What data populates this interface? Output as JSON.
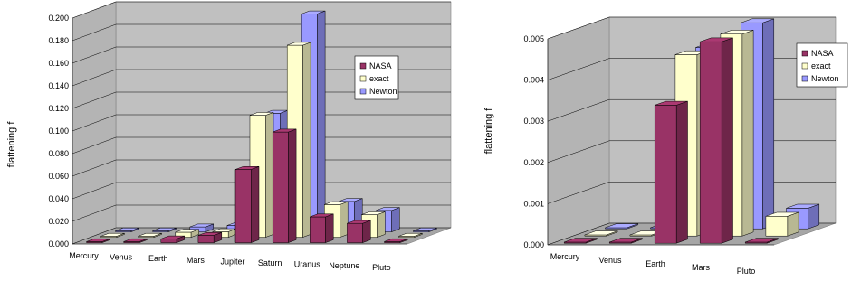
{
  "colors": {
    "NASA": "#993366",
    "exact": "#ffffcc",
    "Newton": "#9999ff",
    "wall": "#c0c0c0",
    "floor": "#a6a6a6"
  },
  "chart_data": [
    {
      "type": "bar",
      "style": "3d-clustered",
      "title": "",
      "xlabel": "",
      "ylabel": "flattening f",
      "ylim": [
        0,
        0.2
      ],
      "yticks": [
        "0.000",
        "0.020",
        "0.040",
        "0.060",
        "0.080",
        "0.100",
        "0.120",
        "0.140",
        "0.160",
        "0.180",
        "0.200"
      ],
      "categories": [
        "Mercury",
        "Venus",
        "Earth",
        "Mars",
        "Jupiter",
        "Saturn",
        "Uranus",
        "Neptune",
        "Pluto"
      ],
      "legend": {
        "position": "right",
        "entries": [
          "NASA",
          "exact",
          "Newton"
        ]
      },
      "grid": true,
      "series": [
        {
          "name": "NASA",
          "values": [
            0.0,
            0.0,
            0.0034,
            0.0065,
            0.0649,
            0.098,
            0.0229,
            0.0171,
            0.0
          ]
        },
        {
          "name": "exact",
          "values": [
            0.0,
            0.0,
            0.0045,
            0.005,
            0.108,
            0.17,
            0.029,
            0.02,
            0.0
          ]
        },
        {
          "name": "Newton",
          "values": [
            0.0,
            0.0,
            0.0044,
            0.0057,
            0.105,
            0.193,
            0.027,
            0.019,
            0.0
          ]
        }
      ]
    },
    {
      "type": "bar",
      "style": "3d-clustered",
      "title": "",
      "xlabel": "",
      "ylabel": "flattening f",
      "ylim": [
        0,
        0.005
      ],
      "yticks": [
        "0.000",
        "0.001",
        "0.002",
        "0.003",
        "0.004",
        "0.005"
      ],
      "categories": [
        "Mercury",
        "Venus",
        "Earth",
        "Mars",
        "Pluto"
      ],
      "legend": {
        "position": "right",
        "entries": [
          "NASA",
          "exact",
          "Newton"
        ]
      },
      "grid": true,
      "series": [
        {
          "name": "NASA",
          "values": [
            0.0,
            0.0,
            0.00335,
            0.00489,
            0.0
          ]
        },
        {
          "name": "exact",
          "values": [
            0.0,
            0.0,
            0.0044,
            0.0049,
            0.00048
          ]
        },
        {
          "name": "Newton",
          "values": [
            0.0,
            0.0,
            0.0044,
            0.005,
            0.0005
          ]
        }
      ]
    }
  ]
}
